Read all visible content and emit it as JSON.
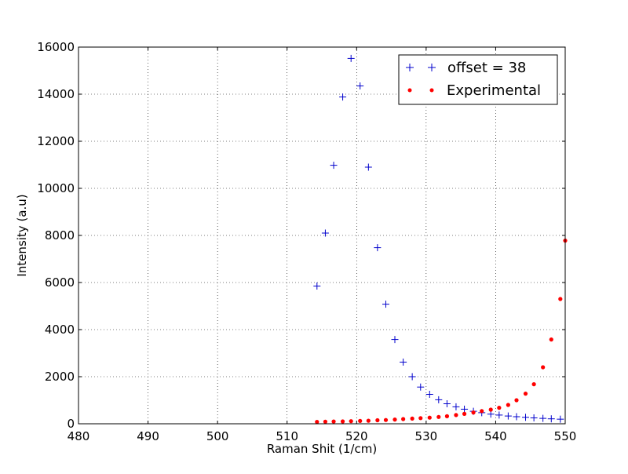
{
  "chart_data": {
    "type": "scatter",
    "title": "",
    "xlabel": "Raman Shit (1/cm)",
    "ylabel": "Intensity (a.u)",
    "xlim": [
      480,
      550
    ],
    "ylim": [
      0,
      16000
    ],
    "xticks": [
      480,
      490,
      500,
      510,
      520,
      530,
      540,
      550
    ],
    "yticks": [
      0,
      2000,
      4000,
      6000,
      8000,
      10000,
      12000,
      14000,
      16000
    ],
    "grid": true,
    "legend_position": "top-right",
    "series": [
      {
        "name": "offset = 38",
        "marker": "plus",
        "color": "#0000cc",
        "points": [
          [
            514.3,
            5850
          ],
          [
            515.5,
            8100
          ],
          [
            516.7,
            10980
          ],
          [
            518.0,
            13880
          ],
          [
            519.2,
            15520
          ],
          [
            520.5,
            14350
          ],
          [
            521.7,
            10900
          ],
          [
            523.0,
            7480
          ],
          [
            524.2,
            5080
          ],
          [
            525.5,
            3580
          ],
          [
            526.7,
            2620
          ],
          [
            528.0,
            2000
          ],
          [
            529.2,
            1560
          ],
          [
            530.5,
            1250
          ],
          [
            531.8,
            1020
          ],
          [
            533.0,
            850
          ],
          [
            534.3,
            720
          ],
          [
            535.5,
            620
          ],
          [
            536.8,
            530
          ],
          [
            538.0,
            470
          ],
          [
            539.3,
            410
          ],
          [
            540.5,
            370
          ],
          [
            541.8,
            330
          ],
          [
            543.0,
            300
          ],
          [
            544.3,
            275
          ],
          [
            545.5,
            250
          ],
          [
            546.8,
            230
          ],
          [
            548.0,
            210
          ],
          [
            549.3,
            195
          ]
        ]
      },
      {
        "name": "Experimental",
        "marker": "dot",
        "color": "#ff0000",
        "points": [
          [
            514.3,
            80
          ],
          [
            515.5,
            90
          ],
          [
            516.7,
            95
          ],
          [
            518.0,
            100
          ],
          [
            519.2,
            110
          ],
          [
            520.5,
            120
          ],
          [
            521.7,
            130
          ],
          [
            523.0,
            150
          ],
          [
            524.2,
            160
          ],
          [
            525.5,
            180
          ],
          [
            526.7,
            200
          ],
          [
            528.0,
            220
          ],
          [
            529.2,
            240
          ],
          [
            530.5,
            260
          ],
          [
            531.8,
            290
          ],
          [
            533.0,
            320
          ],
          [
            534.3,
            370
          ],
          [
            535.5,
            420
          ],
          [
            536.8,
            480
          ],
          [
            538.0,
            540
          ],
          [
            539.3,
            600
          ],
          [
            540.5,
            680
          ],
          [
            541.8,
            800
          ],
          [
            543.0,
            1000
          ],
          [
            544.3,
            1280
          ],
          [
            545.5,
            1680
          ],
          [
            546.8,
            2400
          ],
          [
            548.0,
            3580
          ],
          [
            549.3,
            5300
          ],
          [
            550.0,
            7780
          ]
        ]
      }
    ]
  }
}
